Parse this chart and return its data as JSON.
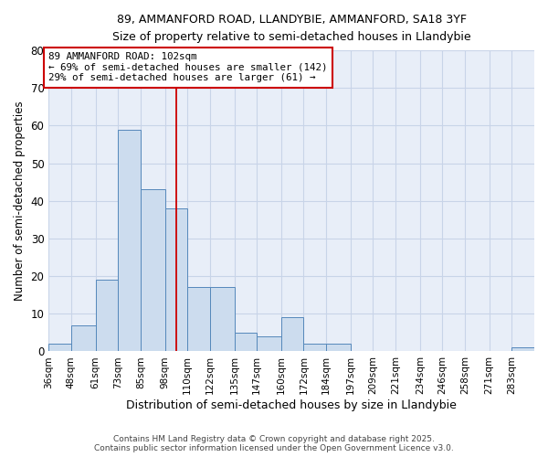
{
  "title1": "89, AMMANFORD ROAD, LLANDYBIE, AMMANFORD, SA18 3YF",
  "title2": "Size of property relative to semi-detached houses in Llandybie",
  "xlabel": "Distribution of semi-detached houses by size in Llandybie",
  "ylabel": "Number of semi-detached properties",
  "bin_labels": [
    "36sqm",
    "48sqm",
    "61sqm",
    "73sqm",
    "85sqm",
    "98sqm",
    "110sqm",
    "122sqm",
    "135sqm",
    "147sqm",
    "160sqm",
    "172sqm",
    "184sqm",
    "197sqm",
    "209sqm",
    "221sqm",
    "234sqm",
    "246sqm",
    "258sqm",
    "271sqm",
    "283sqm"
  ],
  "bar_values": [
    2,
    7,
    19,
    59,
    43,
    38,
    17,
    17,
    5,
    4,
    9,
    2,
    2,
    0,
    0,
    0,
    0,
    0,
    0,
    0,
    1
  ],
  "bar_color": "#ccdcee",
  "bar_edge_color": "#5588bb",
  "bin_edges": [
    36,
    48,
    61,
    73,
    85,
    98,
    110,
    122,
    135,
    147,
    160,
    172,
    184,
    197,
    209,
    221,
    234,
    246,
    258,
    271,
    283,
    295
  ],
  "annotation_title": "89 AMMANFORD ROAD: 102sqm",
  "annotation_line1": "← 69% of semi-detached houses are smaller (142)",
  "annotation_line2": "29% of semi-detached houses are larger (61) →",
  "annotation_box_color": "#ffffff",
  "annotation_box_edge_color": "#cc0000",
  "vline_color": "#cc0000",
  "vline_x": 104,
  "ylim": [
    0,
    80
  ],
  "yticks": [
    0,
    10,
    20,
    30,
    40,
    50,
    60,
    70,
    80
  ],
  "grid_color": "#c8d4e8",
  "bg_color": "#ffffff",
  "plot_bg_color": "#e8eef8",
  "footer1": "Contains HM Land Registry data © Crown copyright and database right 2025.",
  "footer2": "Contains public sector information licensed under the Open Government Licence v3.0."
}
